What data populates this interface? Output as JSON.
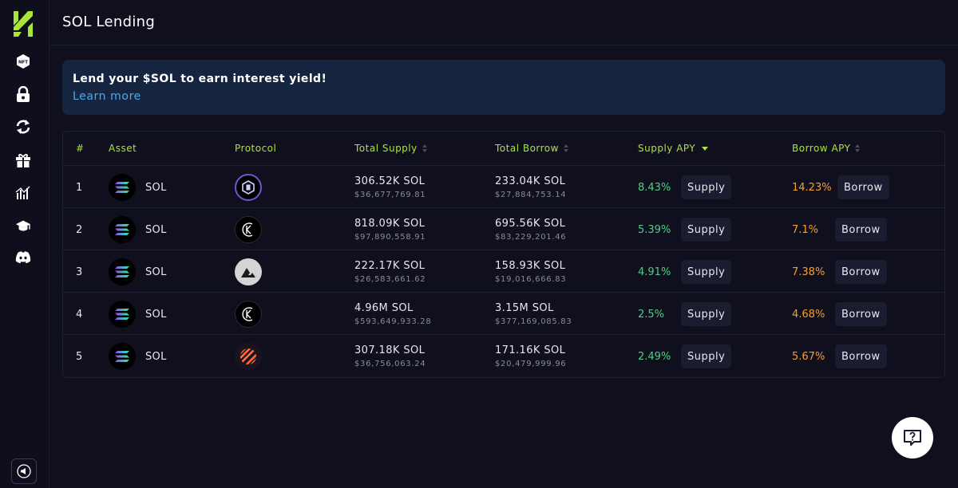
{
  "page": {
    "title": "SOL Lending"
  },
  "sidebar": {
    "icons": [
      "logo-icon",
      "nft-icon",
      "lock-icon",
      "swap-icon",
      "gift-icon",
      "chart-icon",
      "graduation-cap-icon",
      "discord-icon"
    ],
    "nft_label": "NFT"
  },
  "banner": {
    "title": "Lend your $SOL to earn interest yield!",
    "link": "Learn more"
  },
  "table": {
    "headers": {
      "num": "#",
      "asset": "Asset",
      "protocol": "Protocol",
      "total_supply": "Total Supply",
      "total_borrow": "Total Borrow",
      "supply_apy": "Supply APY",
      "borrow_apy": "Borrow APY"
    },
    "rows": [
      {
        "num": "1",
        "asset": "SOL",
        "protocol_icon": "protocol-a-icon",
        "supply": "306.52K SOL",
        "supply_usd": "$36,677,769.81",
        "borrow": "233.04K SOL",
        "borrow_usd": "$27,884,753.14",
        "supply_apy": "8.43%",
        "borrow_apy": "14.23%"
      },
      {
        "num": "2",
        "asset": "SOL",
        "protocol_icon": "protocol-k-icon",
        "supply": "818.09K SOL",
        "supply_usd": "$97,890,558.91",
        "borrow": "695.56K SOL",
        "borrow_usd": "$83,229,201.46",
        "supply_apy": "5.39%",
        "borrow_apy": "7.1%"
      },
      {
        "num": "3",
        "asset": "SOL",
        "protocol_icon": "protocol-mountain-icon",
        "supply": "222.17K SOL",
        "supply_usd": "$26,583,661.62",
        "borrow": "158.93K SOL",
        "borrow_usd": "$19,016,666.83",
        "supply_apy": "4.91%",
        "borrow_apy": "7.38%"
      },
      {
        "num": "4",
        "asset": "SOL",
        "protocol_icon": "protocol-k-icon",
        "supply": "4.96M SOL",
        "supply_usd": "$593,649,933.28",
        "borrow": "3.15M SOL",
        "borrow_usd": "$377,169,085.83",
        "supply_apy": "2.5%",
        "borrow_apy": "4.68%"
      },
      {
        "num": "5",
        "asset": "SOL",
        "protocol_icon": "protocol-stripes-icon",
        "supply": "307.18K SOL",
        "supply_usd": "$36,756,063.24",
        "borrow": "171.16K SOL",
        "borrow_usd": "$20,479,999.96",
        "supply_apy": "2.49%",
        "borrow_apy": "5.67%"
      }
    ],
    "supply_button": "Supply",
    "borrow_button": "Borrow"
  },
  "colors": {
    "accent": "#a8e63c",
    "green": "#4ed084",
    "orange": "#f5a030",
    "link": "#4fa8e8"
  }
}
